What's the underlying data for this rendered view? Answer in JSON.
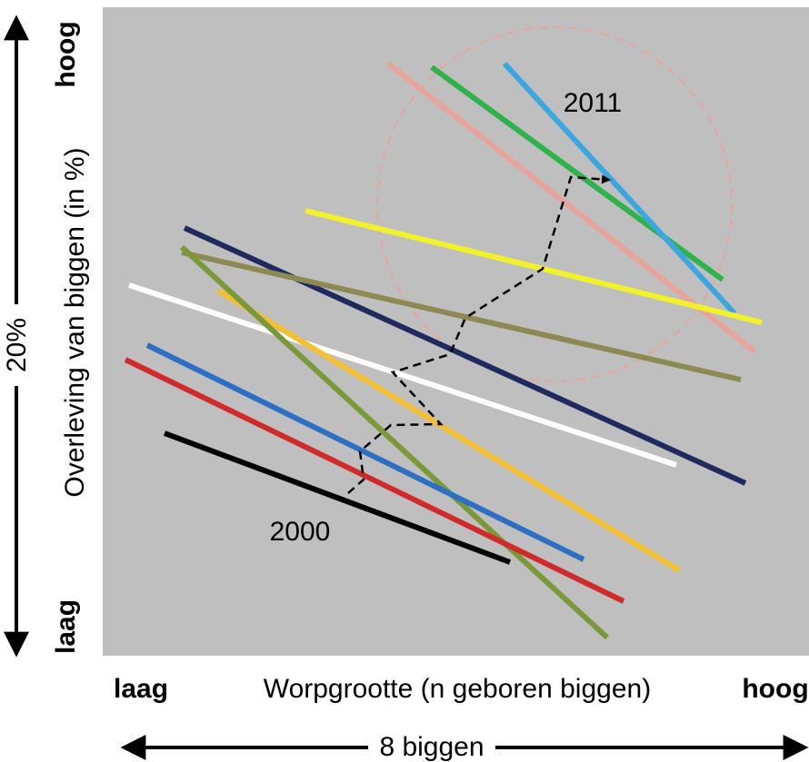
{
  "y_axis": {
    "high": "hoog",
    "low": "laag",
    "title": "Overleving van biggen (in %)",
    "span": "20%"
  },
  "x_axis": {
    "low": "laag",
    "title": "Worpgrootte (n geboren biggen)",
    "high": "hoog",
    "span": "8 biggen"
  },
  "annotations": {
    "end_year": "2011",
    "start_year": "2000"
  }
}
